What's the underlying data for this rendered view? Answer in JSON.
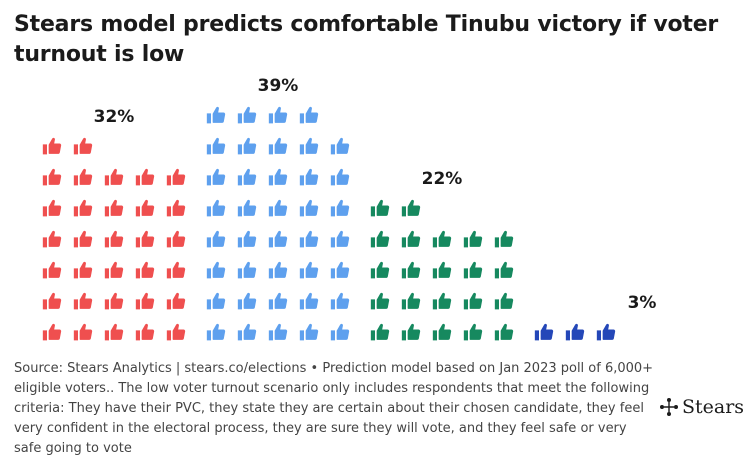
{
  "title": "Stears model predicts comfortable Tinubu victory if voter turnout is low",
  "chart_data": {
    "type": "pictograph",
    "icon": "thumbs-up-icon",
    "groups": [
      {
        "label": "32%",
        "value": 32,
        "icons": 32,
        "color": "#ef4f4f"
      },
      {
        "label": "39%",
        "value": 39,
        "icons": 39,
        "color": "#5ea0ee"
      },
      {
        "label": "22%",
        "value": 22,
        "icons": 22,
        "color": "#16895f"
      },
      {
        "label": "3%",
        "value": 3,
        "icons": 3,
        "color": "#2447b8"
      }
    ]
  },
  "source": "Source: Stears Analytics | stears.co/elections • Prediction model based on Jan 2023 poll of 6,000+ eligible voters.. The low voter turnout scenario only includes respondents that meet the following criteria: They have their PVC, they state they are certain about their chosen candidate, they feel very confident in the electoral process, they are sure they will vote, and they feel safe or very safe going to vote",
  "brand": {
    "name": "Stears",
    "icon": "stears-logo-icon"
  }
}
